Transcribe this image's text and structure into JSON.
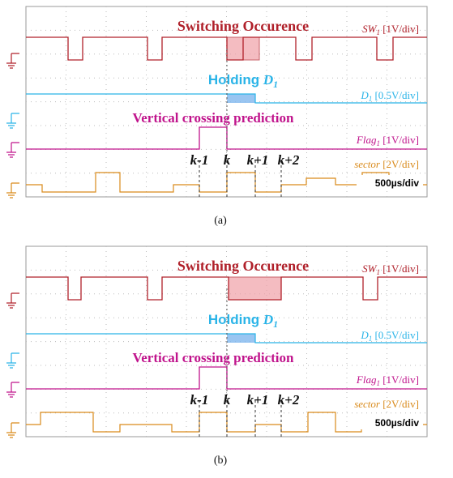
{
  "panels": [
    {
      "title": "Switching Occurence",
      "holding": {
        "text": "Holding ",
        "var": "D",
        "sub": "1"
      },
      "prediction": "Vertical crossing prediction",
      "channels": [
        {
          "name": "SW",
          "sub": "1",
          "scale": " [1V/div]"
        },
        {
          "name": "D",
          "sub": "1",
          "scale": " [0.5V/div]"
        },
        {
          "name": "Flag",
          "sub": "1",
          "scale": " [1V/div]"
        },
        {
          "name": "sector",
          "scale": " [2V/div]"
        }
      ],
      "timebase": "500µs/div",
      "instants": [
        "k-1",
        "k",
        "k+1",
        "k+2"
      ],
      "caption": "(a)"
    },
    {
      "title": "Switching Occurence",
      "holding": {
        "text": "Holding ",
        "var": "D",
        "sub": "1"
      },
      "prediction": "Vertical crossing prediction",
      "channels": [
        {
          "name": "SW",
          "sub": "1",
          "scale": " [1V/div]"
        },
        {
          "name": "D",
          "sub": "1",
          "scale": " [0.5V/div]"
        },
        {
          "name": "Flag",
          "sub": "1",
          "scale": " [1V/div]"
        },
        {
          "name": "sector",
          "scale": " [2V/div]"
        }
      ],
      "timebase": "500µs/div",
      "instants": [
        "k-1",
        "k",
        "k+1",
        "k+2"
      ],
      "caption": "(b)"
    }
  ]
}
